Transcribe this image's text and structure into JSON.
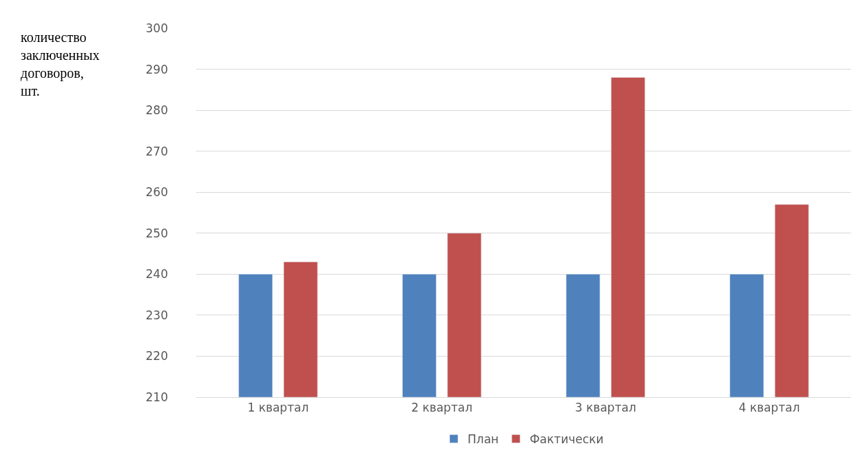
{
  "chart_data": {
    "type": "bar",
    "ylabel": "количество\nзаключенных\nдоговоров,\nшт.",
    "categories": [
      "1 квартал",
      "2 квартал",
      "3 квартал",
      "4 квартал"
    ],
    "series": [
      {
        "name": "План",
        "color": "#4f81bd",
        "values": [
          240,
          240,
          240,
          240
        ]
      },
      {
        "name": "Фактически",
        "color": "#c0504d",
        "values": [
          243,
          250,
          288,
          257
        ]
      }
    ],
    "ylim": [
      210,
      300
    ],
    "yticks": [
      210,
      220,
      230,
      240,
      250,
      260,
      270,
      280,
      290,
      300
    ],
    "grid": "y",
    "legend": "bottom"
  }
}
